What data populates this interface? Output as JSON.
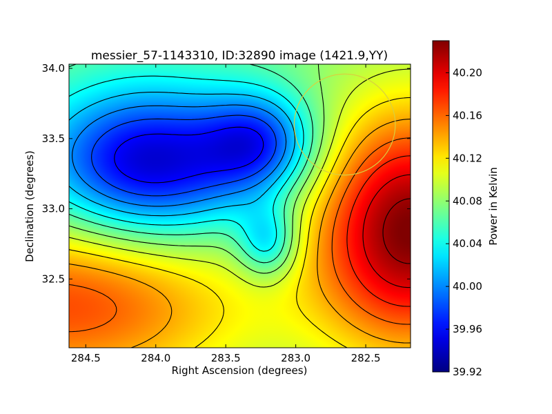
{
  "chart_data": {
    "type": "heatmap",
    "title": "messier_57-1143310, ID:32890 image (1421.9,YY)",
    "xlabel": "Right Ascension (degrees)",
    "ylabel": "Declination (degrees)",
    "colorbar_label": "Power in Kelvin",
    "xlim": [
      284.62,
      282.18
    ],
    "ylim": [
      32.01,
      34.03
    ],
    "x_ticks": [
      284.5,
      284.0,
      283.5,
      283.0,
      282.5
    ],
    "x_tick_labels": [
      "284.5",
      "284.0",
      "283.5",
      "283.0",
      "282.5"
    ],
    "y_ticks": [
      32.5,
      33.0,
      33.5,
      34.0
    ],
    "y_tick_labels": [
      "32.5",
      "33.0",
      "33.5",
      "34.0"
    ],
    "colorbar_range": [
      39.92,
      40.23
    ],
    "colorbar_ticks": [
      39.92,
      39.96,
      40.0,
      40.04,
      40.08,
      40.12,
      40.16,
      40.2
    ],
    "colorbar_tick_labels": [
      "39.92",
      "39.96",
      "40.00",
      "40.04",
      "40.08",
      "40.12",
      "40.16",
      "40.20"
    ],
    "colormap": "jet",
    "contour_color": "#000000",
    "field_features": [
      {
        "kind": "min",
        "ra": 284.05,
        "dec": 33.32,
        "value": 39.94,
        "sigma_ra": 0.55,
        "sigma_dec": 0.38
      },
      {
        "kind": "min",
        "ra": 283.25,
        "dec": 33.47,
        "value": 39.99,
        "sigma_ra": 0.28,
        "sigma_dec": 0.25
      },
      {
        "kind": "min",
        "ra": 283.2,
        "dec": 32.76,
        "value": 40.01,
        "sigma_ra": 0.15,
        "sigma_dec": 0.18
      },
      {
        "kind": "max",
        "ra": 282.18,
        "dec": 32.85,
        "value": 40.23,
        "sigma_ra": 0.5,
        "sigma_dec": 0.6
      },
      {
        "kind": "max",
        "ra": 284.62,
        "dec": 32.33,
        "value": 40.17,
        "sigma_ra": 0.9,
        "sigma_dec": 0.45
      }
    ],
    "beam_circle": {
      "ra": 282.65,
      "dec": 33.6,
      "radius_deg": 0.36,
      "color": "#d8d040"
    }
  }
}
